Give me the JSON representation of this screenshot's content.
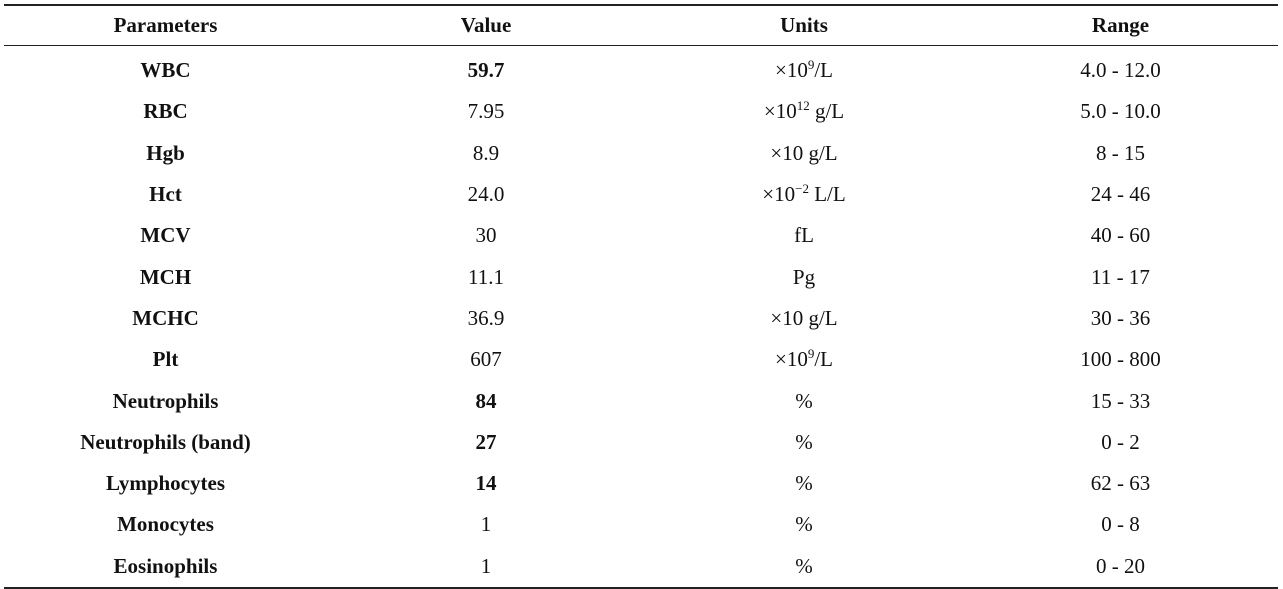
{
  "table": {
    "headers": [
      "Parameters",
      "Value",
      "Units",
      "Range"
    ],
    "rows": [
      {
        "parameter": "WBC",
        "value": "59.7",
        "value_bold": true,
        "unit_base": "×10",
        "unit_exp": "9",
        "unit_tail": "/L",
        "range": "4.0 - 12.0"
      },
      {
        "parameter": "RBC",
        "value": "7.95",
        "value_bold": false,
        "unit_base": "×10",
        "unit_exp": "12",
        "unit_tail": " g/L",
        "range": "5.0 - 10.0"
      },
      {
        "parameter": "Hgb",
        "value": "8.9",
        "value_bold": false,
        "unit_base": "×10 g/L",
        "unit_exp": "",
        "unit_tail": "",
        "range": "8 - 15"
      },
      {
        "parameter": "Hct",
        "value": "24.0",
        "value_bold": false,
        "unit_base": "×10",
        "unit_exp": "−2",
        "unit_tail": " L/L",
        "range": "24 - 46"
      },
      {
        "parameter": "MCV",
        "value": "30",
        "value_bold": false,
        "unit_base": "fL",
        "unit_exp": "",
        "unit_tail": "",
        "range": "40 - 60"
      },
      {
        "parameter": "MCH",
        "value": "11.1",
        "value_bold": false,
        "unit_base": "Pg",
        "unit_exp": "",
        "unit_tail": "",
        "range": "11 - 17"
      },
      {
        "parameter": "MCHC",
        "value": "36.9",
        "value_bold": false,
        "unit_base": "×10 g/L",
        "unit_exp": "",
        "unit_tail": "",
        "range": "30 - 36"
      },
      {
        "parameter": "Plt",
        "value": "607",
        "value_bold": false,
        "unit_base": "×10",
        "unit_exp": "9",
        "unit_tail": "/L",
        "range": "100 - 800"
      },
      {
        "parameter": "Neutrophils",
        "value": "84",
        "value_bold": true,
        "unit_base": "%",
        "unit_exp": "",
        "unit_tail": "",
        "range": "15 - 33"
      },
      {
        "parameter": "Neutrophils (band)",
        "value": "27",
        "value_bold": true,
        "unit_base": "%",
        "unit_exp": "",
        "unit_tail": "",
        "range": "0 - 2"
      },
      {
        "parameter": "Lymphocytes",
        "value": "14",
        "value_bold": true,
        "unit_base": "%",
        "unit_exp": "",
        "unit_tail": "",
        "range": "62 - 63"
      },
      {
        "parameter": "Monocytes",
        "value": "1",
        "value_bold": false,
        "unit_base": "%",
        "unit_exp": "",
        "unit_tail": "",
        "range": "0 - 8"
      },
      {
        "parameter": "Eosinophils",
        "value": "1",
        "value_bold": false,
        "unit_base": "%",
        "unit_exp": "",
        "unit_tail": "",
        "range": "0 - 20"
      }
    ]
  }
}
